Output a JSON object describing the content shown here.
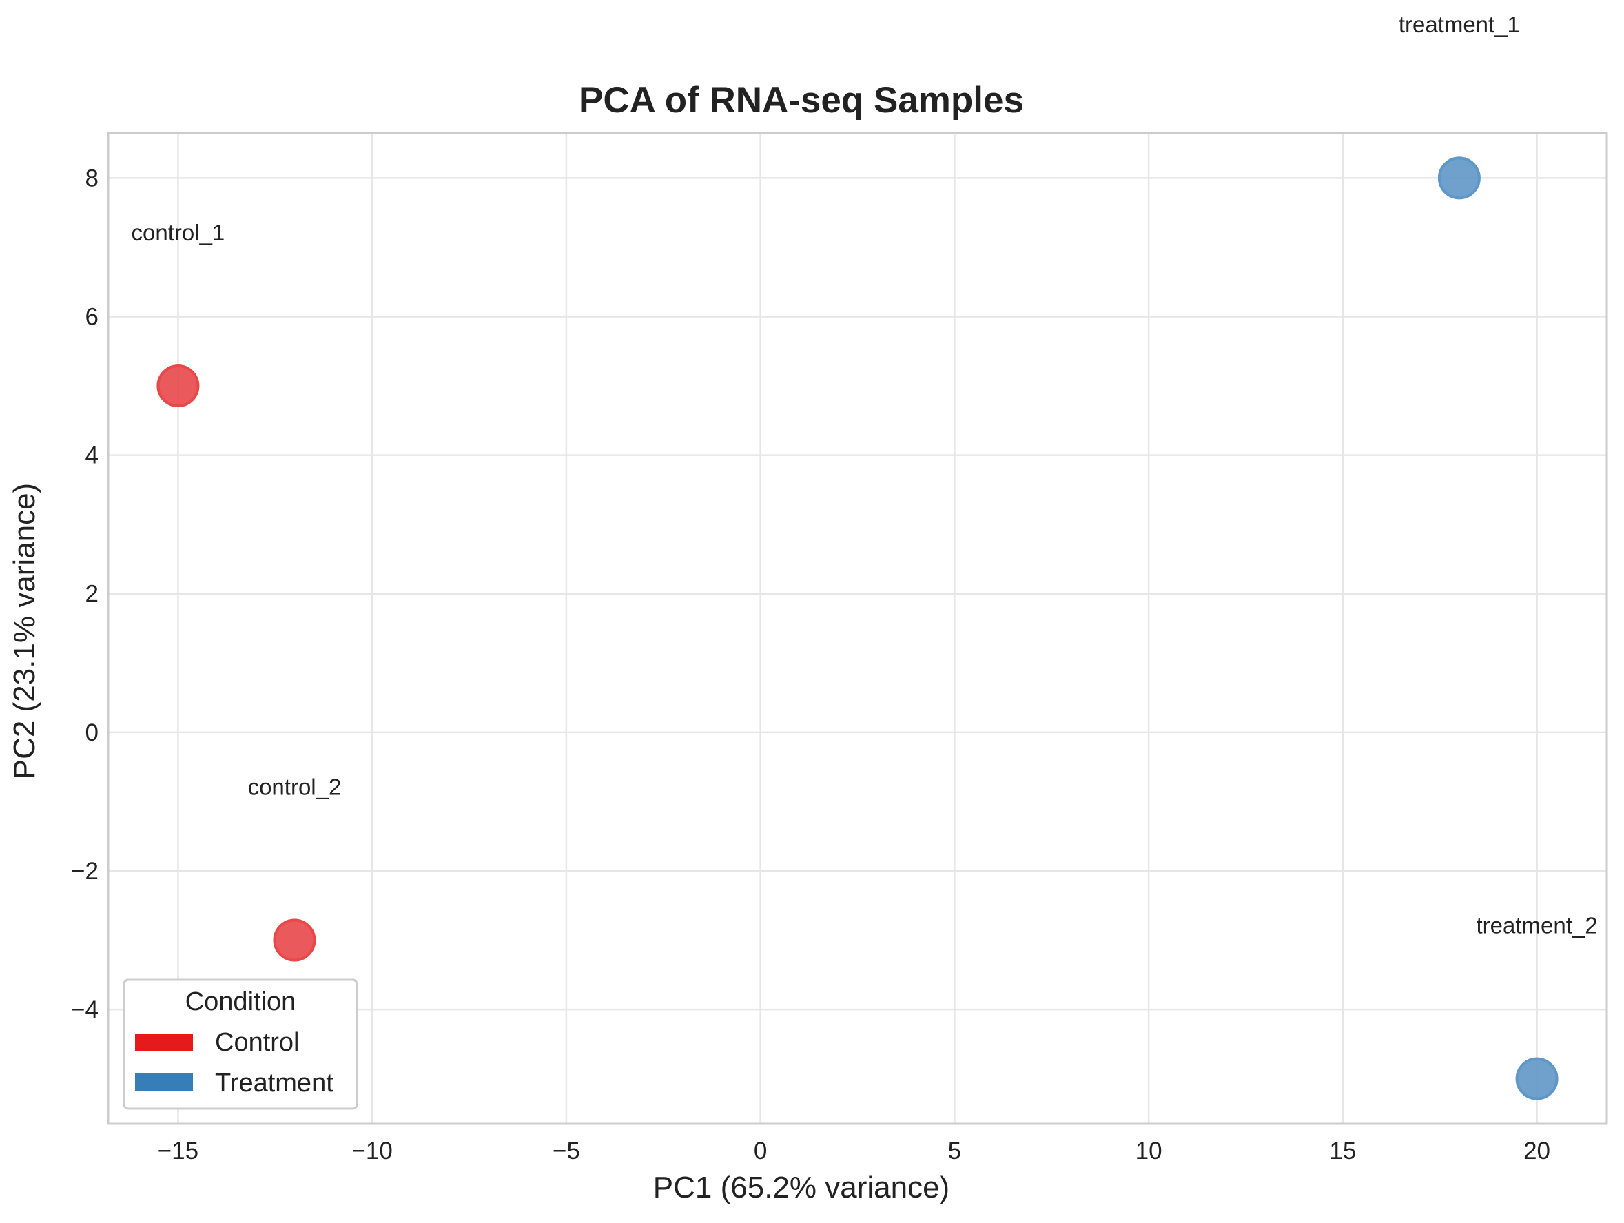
{
  "chart_data": {
    "type": "scatter",
    "title": "PCA of RNA-seq Samples",
    "xlabel": "PC1 (65.2% variance)",
    "ylabel": "PC2 (23.1% variance)",
    "xlim": [
      -16.8,
      21.8
    ],
    "ylim": [
      -5.65,
      8.65
    ],
    "x_ticks": [
      -15,
      -10,
      -5,
      0,
      5,
      10,
      15,
      20
    ],
    "x_tick_labels": [
      "−15",
      "−10",
      "−5",
      "0",
      "5",
      "10",
      "15",
      "20"
    ],
    "y_ticks": [
      -4,
      -2,
      0,
      2,
      4,
      6,
      8
    ],
    "y_tick_labels": [
      "−4",
      "−2",
      "0",
      "2",
      "4",
      "6",
      "8"
    ],
    "grid": true,
    "legend_position": "lower-left",
    "legend": {
      "title": "Condition",
      "entries": [
        {
          "label": "Control",
          "color": "#e41a1c"
        },
        {
          "label": "Treatment",
          "color": "#377eb8"
        }
      ]
    },
    "points": [
      {
        "label": "control_1",
        "condition": "Control",
        "x": -15,
        "y": 5,
        "color": "#e8484a"
      },
      {
        "label": "control_2",
        "condition": "Control",
        "x": -12,
        "y": -3,
        "color": "#e8484a"
      },
      {
        "label": "treatment_1",
        "condition": "Treatment",
        "x": 18,
        "y": 8,
        "color": "#5f97c6"
      },
      {
        "label": "treatment_2",
        "condition": "Treatment",
        "x": 20,
        "y": -5,
        "color": "#5f97c6"
      }
    ],
    "annotations": [
      {
        "text": "control_1",
        "x": -15,
        "y": 7.1
      },
      {
        "text": "control_2",
        "x": -12,
        "y": -0.9
      },
      {
        "text": "treatment_1",
        "x": 18,
        "y": 10.1
      },
      {
        "text": "treatment_2",
        "x": 20,
        "y": -2.9
      }
    ]
  }
}
